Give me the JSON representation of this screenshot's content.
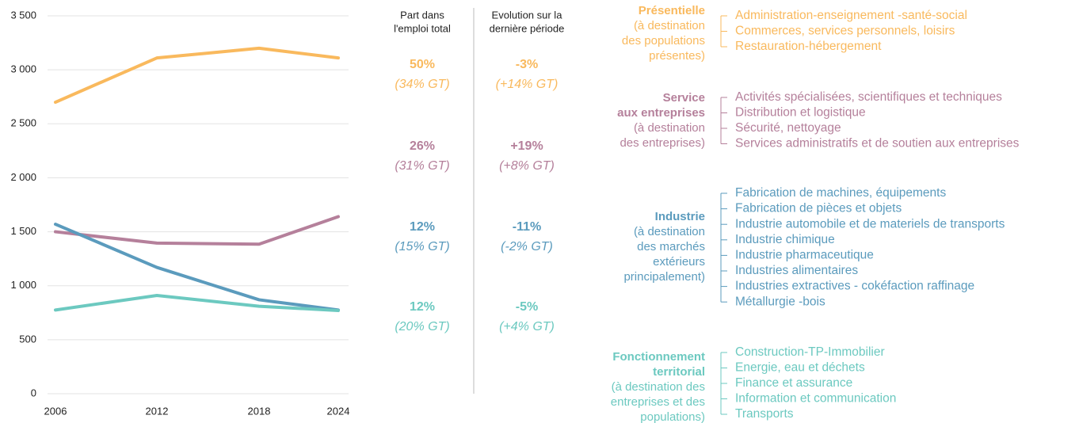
{
  "chart_data": {
    "type": "line",
    "categories": [
      "2006",
      "2012",
      "2018",
      "2024"
    ],
    "series": [
      {
        "color": "#f9b95d",
        "values": [
          2700,
          3110,
          3200,
          3110
        ]
      },
      {
        "color": "#b5809b",
        "values": [
          1500,
          1395,
          1385,
          1640
        ]
      },
      {
        "color": "#5b9bbd",
        "values": [
          1570,
          1170,
          870,
          775
        ]
      },
      {
        "color": "#6cc9c0",
        "values": [
          775,
          910,
          810,
          770
        ]
      }
    ],
    "ylim": [
      0,
      3500
    ],
    "yticks": [
      0,
      500,
      {
        "value": 1000,
        "label": "1 000"
      },
      {
        "value": 1500,
        "label": "1 500"
      },
      {
        "value": 2000,
        "label": "2 000"
      },
      {
        "value": 2500,
        "label": "2 500"
      },
      {
        "value": 3000,
        "label": "3 000"
      },
      {
        "value": 3500,
        "label": "3 500"
      }
    ],
    "grid": true
  },
  "columns": {
    "share_header": [
      "Part dans",
      "l'emploi total"
    ],
    "evolution_header": [
      "Evolution sur la",
      "dernière période"
    ]
  },
  "rows": [
    {
      "color": "#f9b95d",
      "share": "50%",
      "share_gt": "(34% GT)",
      "evolution": "-3%",
      "evolution_gt": "(+14% GT)"
    },
    {
      "color": "#b5809b",
      "share": "26%",
      "share_gt": "(31% GT)",
      "evolution": "+19%",
      "evolution_gt": "(+8% GT)"
    },
    {
      "color": "#5b9bbd",
      "share": "12%",
      "share_gt": "(15% GT)",
      "evolution": "-11%",
      "evolution_gt": "(-2% GT)"
    },
    {
      "color": "#6cc9c0",
      "share": "12%",
      "share_gt": "(20% GT)",
      "evolution": "-5%",
      "evolution_gt": "(+4% GT)"
    }
  ],
  "groups": [
    {
      "color": "#f9b95d",
      "title_lines": [
        "Présentielle"
      ],
      "subtitle_lines": [
        "(à destination",
        "des populations",
        "présentes)"
      ],
      "items": [
        "Administration-enseignement -santé-social",
        "Commerces, services personnels, loisirs",
        "Restauration-hébergement"
      ]
    },
    {
      "color": "#b5809b",
      "title_lines": [
        "Service",
        "aux entreprises"
      ],
      "subtitle_lines": [
        "(à destination",
        "des entreprises)"
      ],
      "items": [
        "Activités spécialisées, scientifiques et techniques",
        "Distribution et logistique",
        "Sécurité, nettoyage",
        "Services administratifs et de soutien aux entreprises"
      ]
    },
    {
      "color": "#5b9bbd",
      "title_lines": [
        "Industrie"
      ],
      "subtitle_lines": [
        "(à destination",
        "des marchés",
        "extérieurs",
        "principalement)"
      ],
      "items": [
        "Fabrication de machines, équipements",
        "Fabrication de pièces et objets",
        "Industrie automobile et de materiels de transports",
        "Industrie chimique",
        "Industrie pharmaceutique",
        "Industries alimentaires",
        "Industries extractives - cokéfaction raffinage",
        "Métallurgie -bois"
      ]
    },
    {
      "color": "#6cc9c0",
      "title_lines": [
        "Fonctionnement",
        "territorial"
      ],
      "subtitle_lines": [
        "(à destination des",
        "entreprises et des",
        "populations)"
      ],
      "items": [
        "Construction-TP-Immobilier",
        "Energie, eau et déchets",
        "Finance et assurance",
        "Information et communication",
        "Transports"
      ]
    }
  ]
}
